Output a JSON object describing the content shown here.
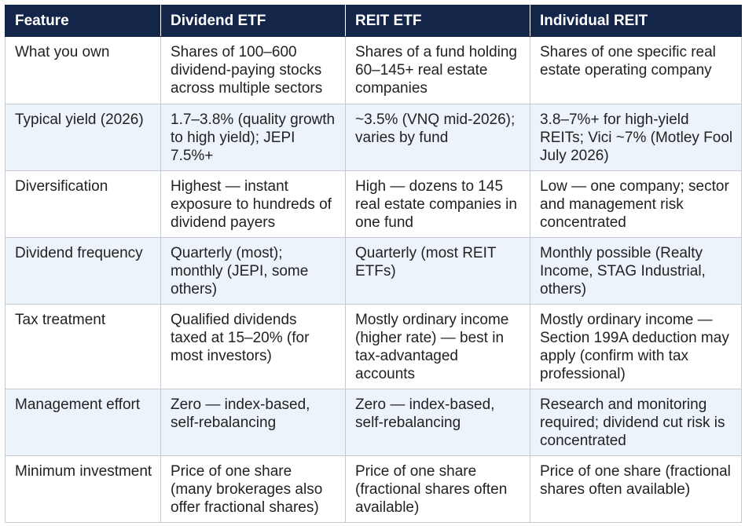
{
  "table": {
    "headers": [
      "Feature",
      "Dividend ETF",
      "REIT ETF",
      "Individual REIT"
    ],
    "rows": [
      [
        "What you own",
        "Shares of 100–600 dividend-paying stocks across multiple sectors",
        "Shares of a fund holding 60–145+ real estate companies",
        "Shares of one specific real estate operating company"
      ],
      [
        "Typical yield (2026)",
        "1.7–3.8% (quality growth to high yield); JEPI 7.5%+",
        "~3.5% (VNQ mid-2026); varies by fund",
        "3.8–7%+ for high-yield REITs; Vici ~7% (Motley Fool July 2026)"
      ],
      [
        "Diversification",
        "Highest — instant exposure to hundreds of dividend payers",
        "High — dozens to 145 real estate companies in one fund",
        "Low — one company; sector and management risk concentrated"
      ],
      [
        "Dividend frequency",
        "Quarterly (most); monthly (JEPI, some others)",
        "Quarterly (most REIT ETFs)",
        "Monthly possible (Realty Income, STAG Industrial, others)"
      ],
      [
        "Tax treatment",
        "Qualified dividends taxed at 15–20% (for most investors)",
        "Mostly ordinary income (higher rate) — best in tax-advantaged accounts",
        "Mostly ordinary income — Section 199A deduction may apply (confirm with tax professional)"
      ],
      [
        "Management effort",
        "Zero — index-based, self-rebalancing",
        "Zero — index-based, self-rebalancing",
        "Research and monitoring required; dividend cut risk is concentrated"
      ],
      [
        "Minimum investment",
        "Price of one share (many brokerages also offer fractional shares)",
        "Price of one share (fractional shares often available)",
        "Price of one share (fractional shares often available)"
      ]
    ]
  }
}
